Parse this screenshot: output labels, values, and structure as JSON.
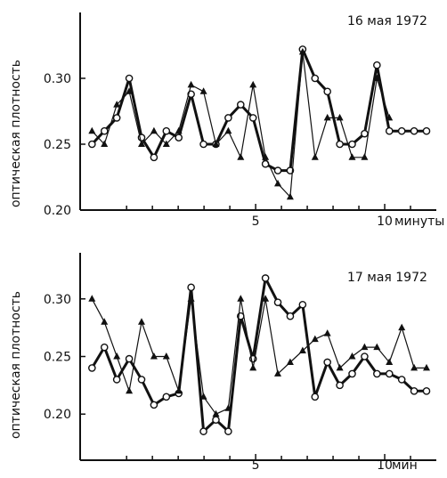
{
  "chart_data": [
    {
      "type": "line",
      "title": "16 мая 1972",
      "ylabel": "оптическая плотность",
      "xlabel": "минуты",
      "xlim": [
        -1.8,
        12.0
      ],
      "ylim": [
        0.2,
        0.35
      ],
      "xticks": [
        5,
        10
      ],
      "yticks": [
        0.2,
        0.25,
        0.3
      ],
      "ytick_labels": [
        "0.20",
        "0.25",
        "0.30"
      ],
      "grid": false,
      "series": [
        {
          "marker": "open-circle",
          "x": [
            -1.34,
            -0.86,
            -0.38,
            0.1,
            0.58,
            1.06,
            1.54,
            2.02,
            2.5,
            2.98,
            3.46,
            3.94,
            4.42,
            4.9,
            5.38,
            5.86,
            6.34,
            6.82,
            7.3,
            7.78,
            8.26,
            8.74,
            9.22,
            9.7,
            10.18,
            10.66,
            11.14,
            11.62
          ],
          "y": [
            0.25,
            0.26,
            0.27,
            0.3,
            0.255,
            0.24,
            0.26,
            0.255,
            0.288,
            0.25,
            0.25,
            0.27,
            0.28,
            0.27,
            0.235,
            0.23,
            0.23,
            0.322,
            0.3,
            0.29,
            0.25,
            0.25,
            0.258,
            0.31,
            0.26,
            0.26,
            0.26,
            0.26
          ]
        },
        {
          "marker": "filled-triangle",
          "x": [
            -1.34,
            -0.86,
            -0.38,
            0.1,
            0.58,
            1.06,
            1.54,
            2.02,
            2.5,
            2.98,
            3.46,
            3.94,
            4.42,
            4.9,
            5.38,
            5.86,
            6.34,
            6.82,
            7.3,
            7.78,
            8.26,
            8.74,
            9.22,
            9.7,
            10.18
          ],
          "y": [
            0.26,
            0.25,
            0.28,
            0.29,
            0.25,
            0.26,
            0.25,
            0.26,
            0.295,
            0.29,
            0.25,
            0.26,
            0.24,
            0.295,
            0.24,
            0.22,
            0.21,
            0.32,
            0.24,
            0.27,
            0.27,
            0.24,
            0.24,
            0.3,
            0.27
          ]
        }
      ]
    },
    {
      "type": "line",
      "title": "17 мая 1972",
      "ylabel": "оптическая плотность",
      "xlabel": "мин",
      "xlim": [
        -1.8,
        12.0
      ],
      "ylim": [
        0.16,
        0.34
      ],
      "xticks": [
        5,
        10
      ],
      "yticks": [
        0.2,
        0.25,
        0.3
      ],
      "ytick_labels": [
        "0.20",
        "0.25",
        "0.30"
      ],
      "grid": false,
      "series": [
        {
          "marker": "open-circle",
          "x": [
            -1.34,
            -0.86,
            -0.38,
            0.1,
            0.58,
            1.06,
            1.54,
            2.02,
            2.5,
            2.98,
            3.46,
            3.94,
            4.42,
            4.9,
            5.38,
            5.86,
            6.34,
            6.82,
            7.3,
            7.78,
            8.26,
            8.74,
            9.22,
            9.7,
            10.18,
            10.66,
            11.14,
            11.62
          ],
          "y": [
            0.24,
            0.258,
            0.23,
            0.248,
            0.23,
            0.208,
            0.215,
            0.218,
            0.31,
            0.185,
            0.195,
            0.185,
            0.285,
            0.248,
            0.318,
            0.297,
            0.285,
            0.295,
            0.215,
            0.245,
            0.225,
            0.235,
            0.25,
            0.235,
            0.235,
            0.23,
            0.22,
            0.22
          ]
        },
        {
          "marker": "filled-triangle",
          "x": [
            -1.34,
            -0.86,
            -0.38,
            0.1,
            0.58,
            1.06,
            1.54,
            2.02,
            2.5,
            2.98,
            3.46,
            3.94,
            4.42,
            4.9,
            5.38,
            5.86,
            6.34,
            6.82,
            7.3,
            7.78,
            8.26,
            8.74,
            9.22,
            9.7,
            10.18,
            10.66,
            11.14,
            11.62
          ],
          "y": [
            0.3,
            0.28,
            0.25,
            0.22,
            0.28,
            0.25,
            0.25,
            0.22,
            0.3,
            0.215,
            0.2,
            0.205,
            0.3,
            0.24,
            0.3,
            0.235,
            0.245,
            0.255,
            0.265,
            0.27,
            0.24,
            0.25,
            0.258,
            0.258,
            0.245,
            0.275,
            0.24,
            0.24
          ]
        }
      ]
    }
  ]
}
